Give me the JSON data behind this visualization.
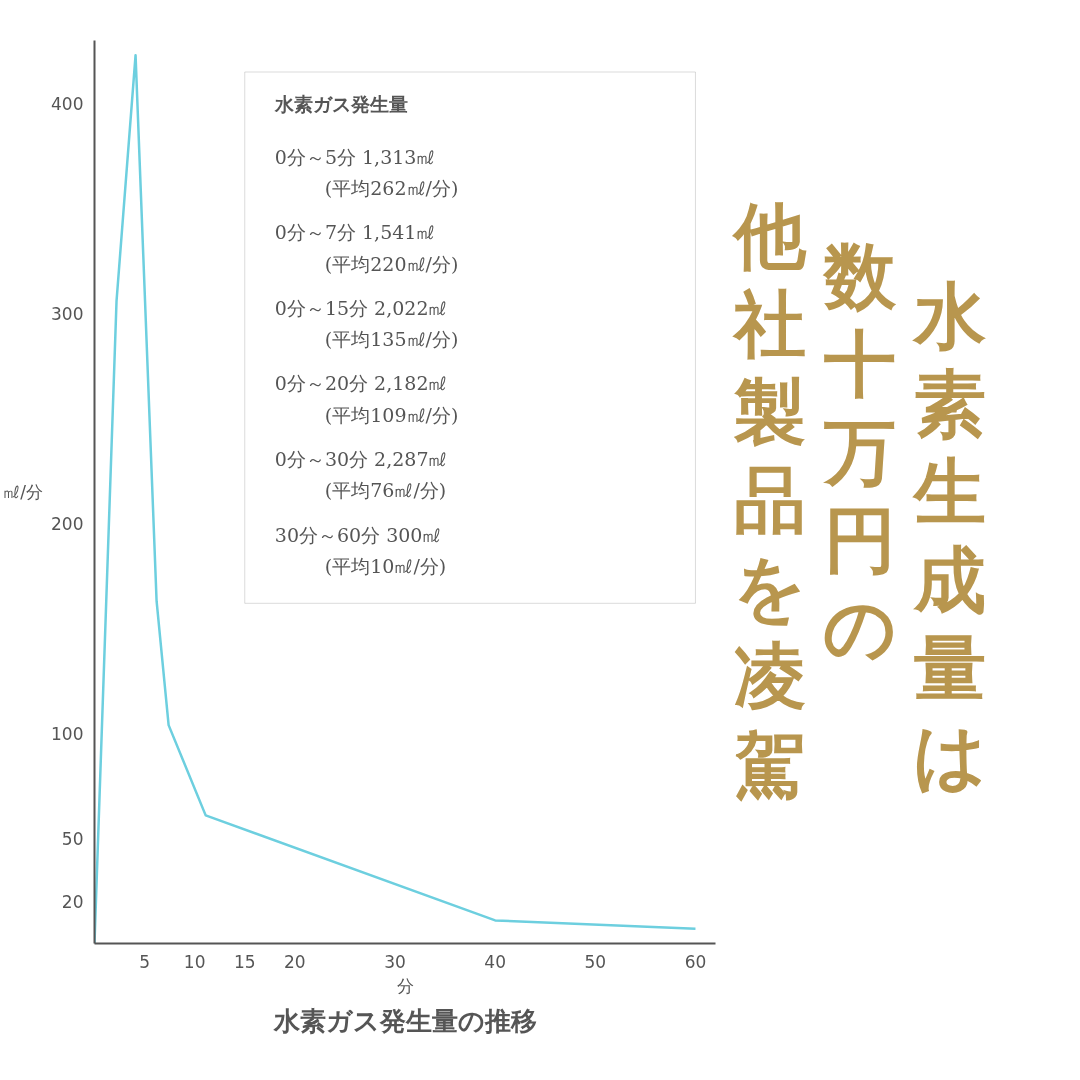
{
  "chart_data": {
    "type": "line",
    "title": "水素ガス発生量の推移",
    "xlabel": "分",
    "ylabel": "㎖/分",
    "x": [
      0,
      2.2,
      4.1,
      6.2,
      7.4,
      11.1,
      40,
      60
    ],
    "series": [
      {
        "color": "#6dcfdf",
        "values": [
          0,
          306,
          423,
          163,
          104,
          61,
          11,
          7
        ]
      }
    ],
    "xlim": [
      0,
      62
    ],
    "ylim": [
      0,
      430
    ],
    "xticks": [
      5,
      10,
      15,
      20,
      30,
      40,
      50,
      60
    ],
    "yticks": [
      20,
      50,
      100,
      200,
      300,
      400
    ],
    "grid": false,
    "marker": "none",
    "line_style": "solid",
    "annotations": [
      "水素ガス発生量",
      "0分～5分 1,313㎖",
      "(平均262㎖/分)",
      "0分～7分 1,541㎖",
      "(平均220㎖/分)",
      "0分～15分 2,022㎖",
      "(平均135㎖/分)",
      "0分～20分 2,182㎖",
      "(平均109㎖/分)",
      "0分～30分 2,287㎖",
      "(平均76㎖/分)",
      "30分～60分 300㎖",
      "(平均10㎖/分)",
      "水素生成量は",
      "数十万円の",
      "他社製品を凌駕"
    ]
  }
}
